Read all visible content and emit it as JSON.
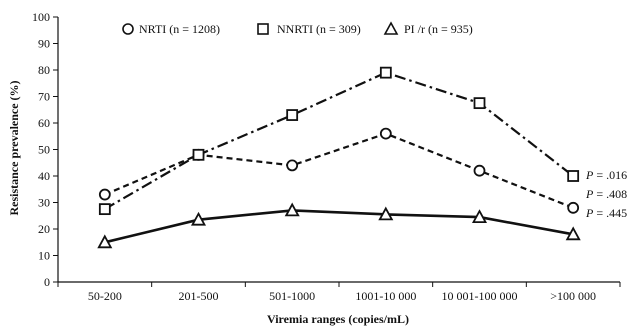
{
  "chart_data": {
    "type": "line",
    "categories": [
      "50-200",
      "201-500",
      "501-1000",
      "1001-10 000",
      "10 001-100 000",
      ">100 000"
    ],
    "xlabel": "Viremia ranges (copies/mL)",
    "ylabel": "Resistance prevalence (%)",
    "ylim": [
      0,
      100
    ],
    "yticks": [
      0,
      10,
      20,
      30,
      40,
      50,
      60,
      70,
      80,
      90,
      100
    ],
    "grid": false,
    "legend_position": "top",
    "series": [
      {
        "name": "NRTI (n = 1208)",
        "marker": "circle",
        "line_style": "dashed",
        "color": "#111111",
        "values": [
          33,
          48,
          44,
          56,
          42,
          28
        ]
      },
      {
        "name": "NNRTI (n = 309)",
        "marker": "square",
        "line_style": "dash-dot",
        "color": "#111111",
        "values": [
          27.5,
          48,
          63,
          79,
          67.5,
          40
        ]
      },
      {
        "name": "PI /r (n = 935)",
        "marker": "triangle",
        "line_style": "solid",
        "color": "#111111",
        "values": [
          15,
          23.5,
          27,
          25.5,
          24.5,
          18
        ]
      }
    ],
    "annotations": [
      {
        "label": "P",
        "text": " = .016"
      },
      {
        "label": "P",
        "text": " = .408"
      },
      {
        "label": "P",
        "text": " = .445"
      }
    ]
  }
}
